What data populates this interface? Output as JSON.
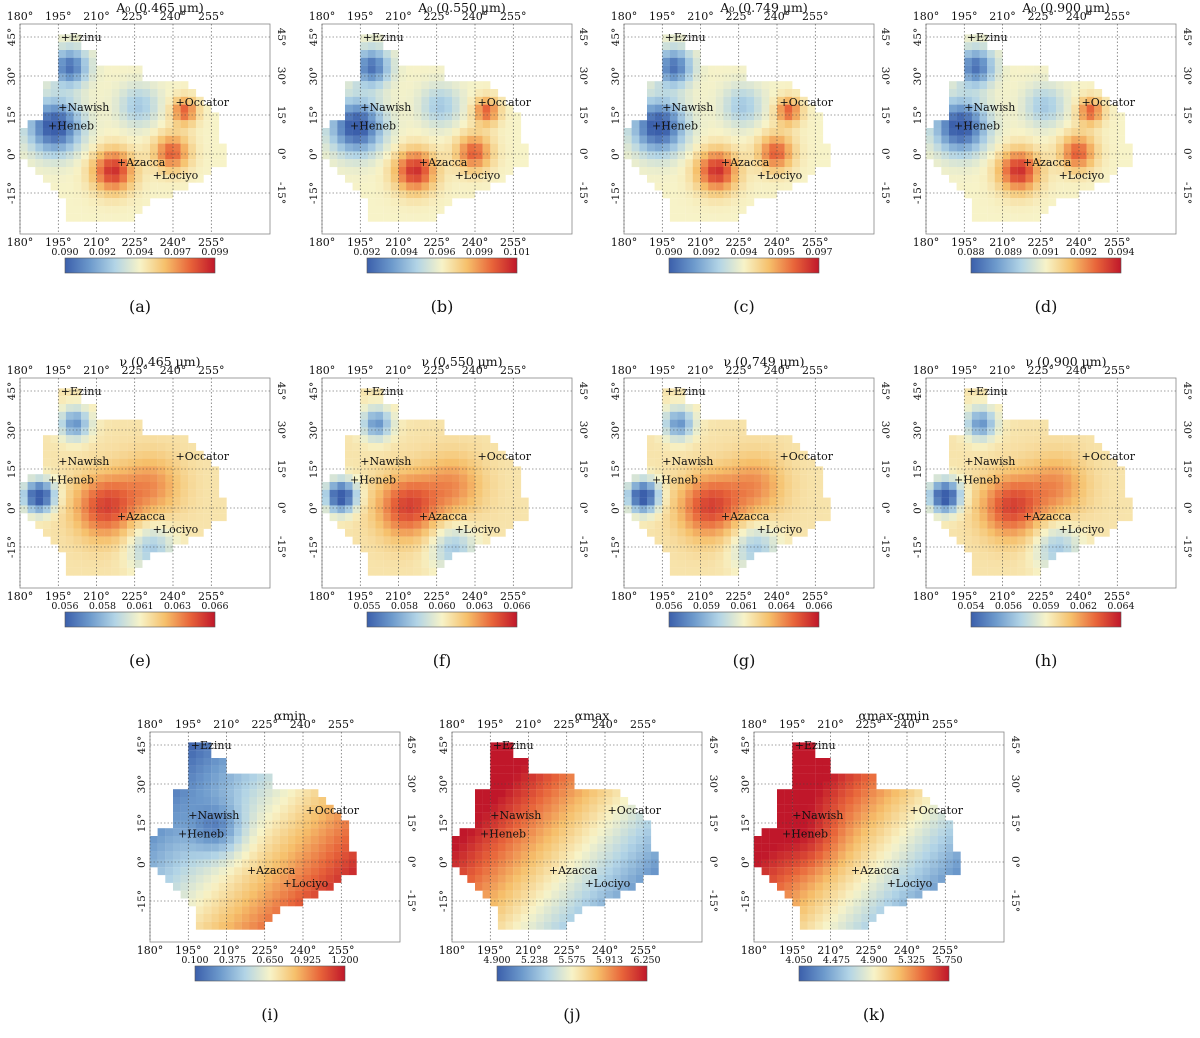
{
  "figure": {
    "grid_lon_labels": [
      "180°",
      "195°",
      "210°",
      "225°",
      "240°",
      "255°"
    ],
    "grid_lat_labels": [
      "45°",
      "30°",
      "15°",
      "0°",
      "-15°"
    ],
    "colormap": [
      "#3b5fab",
      "#6d9acc",
      "#b2d4e6",
      "#f7f3c8",
      "#f6c06b",
      "#e8653a",
      "#c0172a"
    ],
    "landmarks": [
      {
        "name": "+Ezinu"
      },
      {
        "name": "+Nawish"
      },
      {
        "name": "+Heneb"
      },
      {
        "name": "+Occator"
      },
      {
        "name": "+Azacca"
      },
      {
        "name": "+Lociyo"
      }
    ]
  },
  "chart_data": [
    {
      "type": "heatmap",
      "panel": "(a)",
      "title": "A₀ (0.465 µm)",
      "colorbar_ticks": [
        "0.090",
        "0.092",
        "0.094",
        "0.097",
        "0.099"
      ],
      "vmin": 0.09,
      "vmax": 0.099,
      "pattern": "a0"
    },
    {
      "type": "heatmap",
      "panel": "(b)",
      "title": "A₀ (0.550 µm)",
      "colorbar_ticks": [
        "0.092",
        "0.094",
        "0.096",
        "0.099",
        "0.101"
      ],
      "vmin": 0.092,
      "vmax": 0.101,
      "pattern": "a0"
    },
    {
      "type": "heatmap",
      "panel": "(c)",
      "title": "A₀ (0.749 µm)",
      "colorbar_ticks": [
        "0.090",
        "0.092",
        "0.094",
        "0.095",
        "0.097"
      ],
      "vmin": 0.09,
      "vmax": 0.097,
      "pattern": "a0"
    },
    {
      "type": "heatmap",
      "panel": "(d)",
      "title": "A₀ (0.900 µm)",
      "colorbar_ticks": [
        "0.088",
        "0.089",
        "0.091",
        "0.092",
        "0.094"
      ],
      "vmin": 0.088,
      "vmax": 0.094,
      "pattern": "a0"
    },
    {
      "type": "heatmap",
      "panel": "(e)",
      "title": "ν (0.465 µm)",
      "colorbar_ticks": [
        "0.056",
        "0.058",
        "0.061",
        "0.063",
        "0.066"
      ],
      "vmin": 0.056,
      "vmax": 0.066,
      "pattern": "nu"
    },
    {
      "type": "heatmap",
      "panel": "(f)",
      "title": "ν (0.550 µm)",
      "colorbar_ticks": [
        "0.055",
        "0.058",
        "0.060",
        "0.063",
        "0.066"
      ],
      "vmin": 0.055,
      "vmax": 0.066,
      "pattern": "nu"
    },
    {
      "type": "heatmap",
      "panel": "(g)",
      "title": "ν (0.749 µm)",
      "colorbar_ticks": [
        "0.056",
        "0.059",
        "0.061",
        "0.064",
        "0.066"
      ],
      "vmin": 0.056,
      "vmax": 0.066,
      "pattern": "nu"
    },
    {
      "type": "heatmap",
      "panel": "(h)",
      "title": "ν (0.900 µm)",
      "colorbar_ticks": [
        "0.054",
        "0.056",
        "0.059",
        "0.062",
        "0.064"
      ],
      "vmin": 0.054,
      "vmax": 0.064,
      "pattern": "nu"
    },
    {
      "type": "heatmap",
      "panel": "(i)",
      "title": "αmin",
      "colorbar_ticks": [
        "0.100",
        "0.375",
        "0.650",
        "0.925",
        "1.200"
      ],
      "vmin": 0.1,
      "vmax": 1.2,
      "pattern": "amin"
    },
    {
      "type": "heatmap",
      "panel": "(j)",
      "title": "αmax",
      "colorbar_ticks": [
        "4.900",
        "5.238",
        "5.575",
        "5.913",
        "6.250"
      ],
      "vmin": 4.9,
      "vmax": 6.25,
      "pattern": "amax"
    },
    {
      "type": "heatmap",
      "panel": "(k)",
      "title": "αmax-αmin",
      "colorbar_ticks": [
        "4.050",
        "4.475",
        "4.900",
        "5.325",
        "5.750"
      ],
      "vmin": 4.05,
      "vmax": 5.75,
      "pattern": "adiff"
    }
  ]
}
